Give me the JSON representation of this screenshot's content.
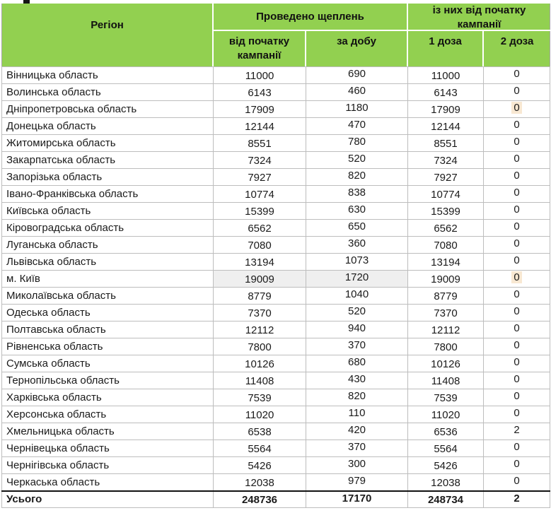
{
  "colors": {
    "header_green": "#92d050",
    "row_highlight_gray": "#efefef",
    "value_highlight_peach": "#f8e8d2",
    "grid_border": "#bdbdbd",
    "total_row_border": "#111111"
  },
  "header": {
    "region": "Регіон",
    "group_vaccinations": "Проведено щеплень",
    "group_since_start": "із них від початку кампанії",
    "sub_campaign_total": "від початку кампанії",
    "sub_per_day": "за добу",
    "sub_dose1": "1 доза",
    "sub_dose2": "2 доза"
  },
  "rows": [
    {
      "region": "Вінницька область",
      "campaign_total": "11000",
      "per_day": "690",
      "dose1": "11000",
      "dose2": "0"
    },
    {
      "region": "Волинська область",
      "campaign_total": "6143",
      "per_day": "460",
      "dose1": "6143",
      "dose2": "0"
    },
    {
      "region": "Дніпропетровська область",
      "campaign_total": "17909",
      "per_day": "1180",
      "dose1": "17909",
      "dose2": "0",
      "dose2_highlighted": true
    },
    {
      "region": "Донецька область",
      "campaign_total": "12144",
      "per_day": "470",
      "dose1": "12144",
      "dose2": "0"
    },
    {
      "region": "Житомирська область",
      "campaign_total": "8551",
      "per_day": "780",
      "dose1": "8551",
      "dose2": "0"
    },
    {
      "region": "Закарпатська область",
      "campaign_total": "7324",
      "per_day": "520",
      "dose1": "7324",
      "dose2": "0"
    },
    {
      "region": "Запорізька область",
      "campaign_total": "7927",
      "per_day": "820",
      "dose1": "7927",
      "dose2": "0"
    },
    {
      "region": "Івано-Франківська область",
      "campaign_total": "10774",
      "per_day": "838",
      "dose1": "10774",
      "dose2": "0"
    },
    {
      "region": "Київська область",
      "campaign_total": "15399",
      "per_day": "630",
      "dose1": "15399",
      "dose2": "0"
    },
    {
      "region": "Кіровоградська область",
      "campaign_total": "6562",
      "per_day": "650",
      "dose1": "6562",
      "dose2": "0"
    },
    {
      "region": "Луганська область",
      "campaign_total": "7080",
      "per_day": "360",
      "dose1": "7080",
      "dose2": "0"
    },
    {
      "region": "Львівська область",
      "campaign_total": "13194",
      "per_day": "1073",
      "dose1": "13194",
      "dose2": "0"
    },
    {
      "region": "м. Київ",
      "campaign_total": "19009",
      "per_day": "1720",
      "dose1": "19009",
      "dose2": "0",
      "gray": true,
      "dose2_highlighted": true
    },
    {
      "region": "Миколаївська область",
      "campaign_total": "8779",
      "per_day": "1040",
      "dose1": "8779",
      "dose2": "0"
    },
    {
      "region": "Одеська область",
      "campaign_total": "7370",
      "per_day": "520",
      "dose1": "7370",
      "dose2": "0"
    },
    {
      "region": "Полтавська область",
      "campaign_total": "12112",
      "per_day": "940",
      "dose1": "12112",
      "dose2": "0"
    },
    {
      "region": "Рівненська область",
      "campaign_total": "7800",
      "per_day": "370",
      "dose1": "7800",
      "dose2": "0"
    },
    {
      "region": "Сумська область",
      "campaign_total": "10126",
      "per_day": "680",
      "dose1": "10126",
      "dose2": "0"
    },
    {
      "region": "Тернопільська область",
      "campaign_total": "11408",
      "per_day": "430",
      "dose1": "11408",
      "dose2": "0"
    },
    {
      "region": "Харківська область",
      "campaign_total": "7539",
      "per_day": "820",
      "dose1": "7539",
      "dose2": "0"
    },
    {
      "region": "Херсонська область",
      "campaign_total": "11020",
      "per_day": "110",
      "dose1": "11020",
      "dose2": "0"
    },
    {
      "region": "Хмельницька область",
      "campaign_total": "6538",
      "per_day": "420",
      "dose1": "6536",
      "dose2": "2"
    },
    {
      "region": "Чернівецька область",
      "campaign_total": "5564",
      "per_day": "370",
      "dose1": "5564",
      "dose2": "0"
    },
    {
      "region": "Чернігівська область",
      "campaign_total": "5426",
      "per_day": "300",
      "dose1": "5426",
      "dose2": "0"
    },
    {
      "region": "Черкаська область",
      "campaign_total": "12038",
      "per_day": "979",
      "dose1": "12038",
      "dose2": "0"
    }
  ],
  "total": {
    "label": "Усього",
    "campaign_total": "248736",
    "per_day": "17170",
    "dose1": "248734",
    "dose2": "2"
  }
}
